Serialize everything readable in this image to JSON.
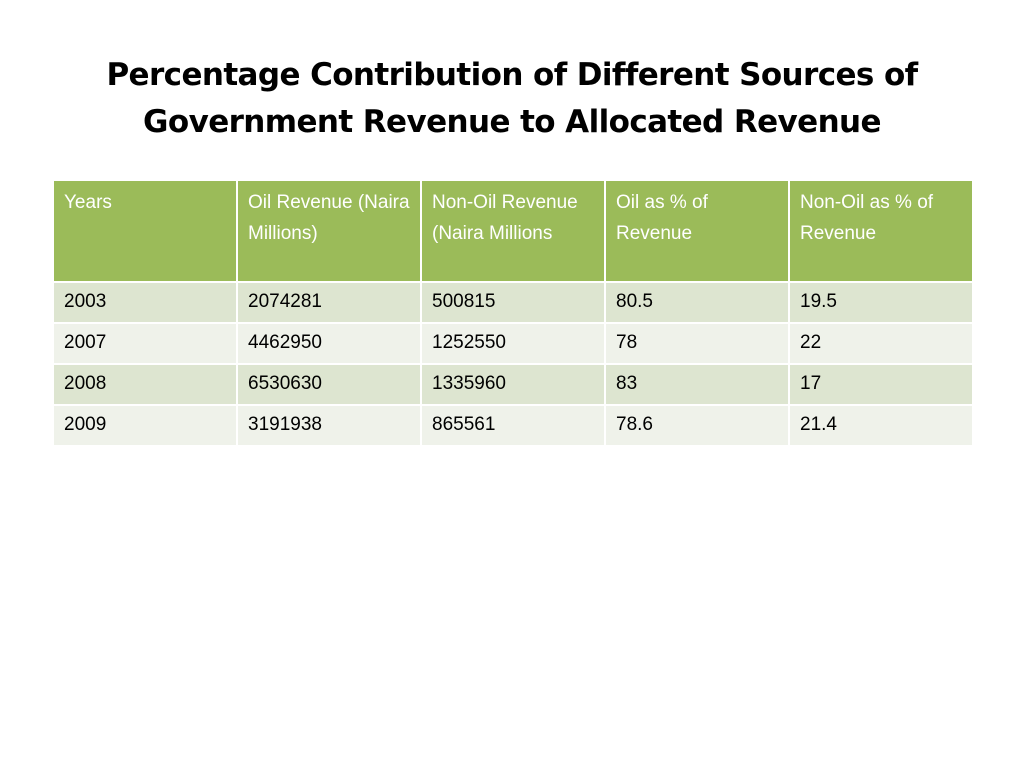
{
  "slide": {
    "title_line1": "Percentage Contribution of Different Sources of",
    "title_line2": "Government Revenue to Allocated Revenue"
  },
  "table": {
    "headers": [
      "Years",
      "Oil Revenue (Naira Millions)",
      "Non-Oil Revenue (Naira Millions",
      "Oil as % of Revenue",
      "Non-Oil as % of Revenue"
    ],
    "rows": [
      [
        "2003",
        "2074281",
        "500815",
        "80.5",
        "19.5"
      ],
      [
        "2007",
        "4462950",
        "1252550",
        "78",
        "22"
      ],
      [
        "2008",
        "6530630",
        "1335960",
        "83",
        "17"
      ],
      [
        "2009",
        "3191938",
        "865561",
        "78.6",
        "21.4"
      ]
    ]
  },
  "colors": {
    "header_bg": "#9bbb59",
    "row_odd_bg": "#dde5d0",
    "row_even_bg": "#eff2ea"
  }
}
